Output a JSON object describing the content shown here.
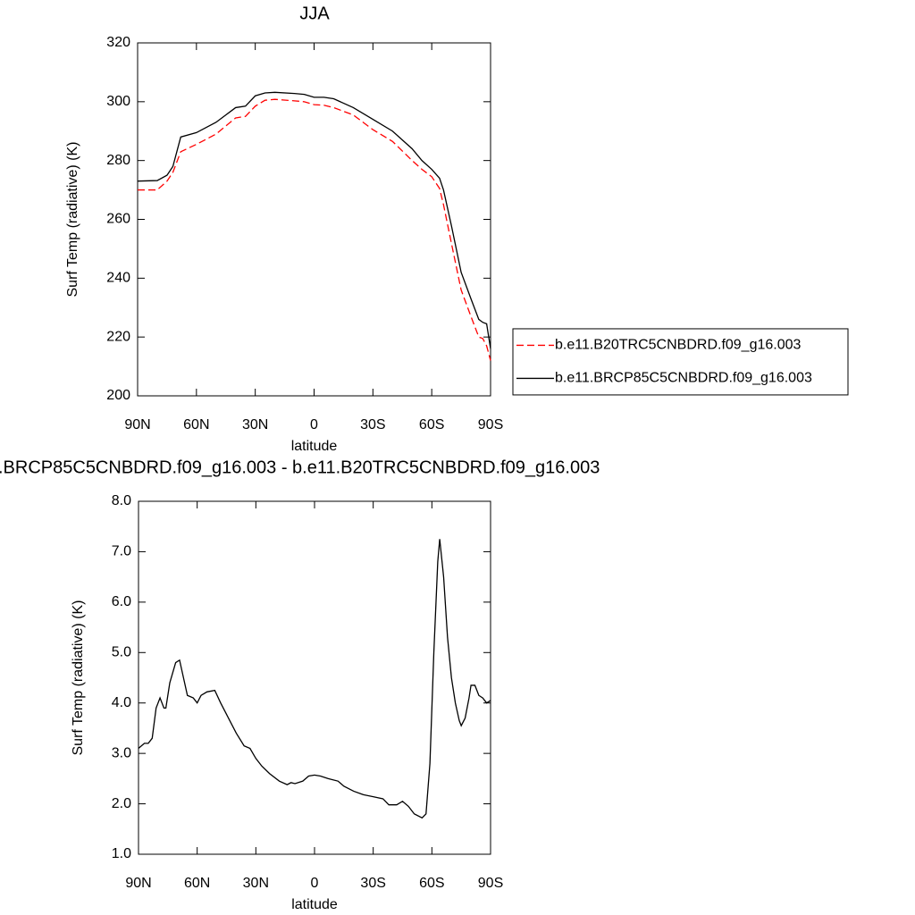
{
  "chart_data": [
    {
      "type": "line",
      "title": "JJA",
      "xlabel": "latitude",
      "ylabel": "Surf Temp (radiative) (K)",
      "x": [
        90,
        80,
        75,
        72,
        68,
        60,
        50,
        40,
        35,
        30,
        25,
        20,
        10,
        5,
        0,
        -5,
        -10,
        -20,
        -30,
        -40,
        -50,
        -55,
        -60,
        -64,
        -66,
        -70,
        -75,
        -80,
        -84,
        -86,
        -88,
        -90
      ],
      "series": [
        {
          "name": "b.e11.B20TRC5CNBDRD.f09_g16.003",
          "color": "#ff0000",
          "line_style": "dashed",
          "values": [
            270,
            270,
            273,
            276,
            283,
            285.5,
            289,
            294.5,
            295,
            298.5,
            300.5,
            300.8,
            300.3,
            300,
            299,
            298.8,
            298,
            295.5,
            290.5,
            286.5,
            280,
            277,
            274.5,
            270.5,
            265,
            252,
            236,
            227,
            220,
            219.5,
            217,
            212
          ]
        },
        {
          "name": "b.e11.BRCP85C5CNBDRD.f09_g16.003",
          "color": "#000000",
          "line_style": "solid",
          "values": [
            273,
            273.2,
            275,
            278,
            288,
            289.5,
            293,
            298,
            298.5,
            302,
            303,
            303.2,
            302.8,
            302.5,
            301.5,
            301.5,
            301,
            298,
            294,
            290,
            284,
            280,
            277,
            274,
            270,
            258,
            242,
            233,
            226,
            225,
            224.5,
            216
          ]
        }
      ],
      "xlim": [
        90,
        -90
      ],
      "xticks": [
        {
          "value": 90,
          "label": "90N"
        },
        {
          "value": 60,
          "label": "60N"
        },
        {
          "value": 30,
          "label": "30N"
        },
        0,
        {
          "value": -30,
          "label": "30S"
        },
        {
          "value": -60,
          "label": "60S"
        },
        {
          "value": -90,
          "label": "90S"
        }
      ],
      "ylim": [
        200,
        320
      ],
      "yticks": [
        200,
        220,
        240,
        260,
        280,
        300,
        320
      ],
      "legend": "right"
    },
    {
      "type": "line",
      "title": ".BRCP85C5CNBDRD.f09_g16.003 - b.e11.B20TRC5CNBDRD.f09_g16.003",
      "xlabel": "latitude",
      "ylabel": "Surf Temp (radiative) (K)",
      "x": [
        90,
        87,
        85,
        83,
        81,
        79,
        77,
        76,
        74,
        71,
        69,
        67,
        65,
        62,
        60,
        58,
        55,
        51,
        48,
        44,
        40,
        36,
        33,
        30,
        27,
        23,
        18,
        14,
        12,
        10,
        6,
        3,
        0,
        -3,
        -7,
        -12,
        -15,
        -20,
        -25,
        -30,
        -35,
        -38,
        -42,
        -45,
        -48,
        -51,
        -55,
        -57,
        -59,
        -61,
        -63,
        -64,
        -66,
        -68,
        -70,
        -72,
        -74,
        -75,
        -77,
        -79,
        -80,
        -82,
        -84,
        -86,
        -88,
        -90
      ],
      "values": [
        3.1,
        3.2,
        3.2,
        3.3,
        3.9,
        4.1,
        3.9,
        3.9,
        4.4,
        4.8,
        4.85,
        4.5,
        4.15,
        4.1,
        4.0,
        4.15,
        4.22,
        4.25,
        4.0,
        3.7,
        3.4,
        3.15,
        3.1,
        2.9,
        2.75,
        2.6,
        2.45,
        2.38,
        2.42,
        2.4,
        2.45,
        2.55,
        2.57,
        2.55,
        2.5,
        2.45,
        2.35,
        2.25,
        2.18,
        2.14,
        2.1,
        1.98,
        1.98,
        2.05,
        1.95,
        1.8,
        1.72,
        1.8,
        2.8,
        5.0,
        6.8,
        7.25,
        6.5,
        5.3,
        4.5,
        4.0,
        3.65,
        3.55,
        3.7,
        4.1,
        4.35,
        4.35,
        4.15,
        4.1,
        4.0,
        4.05
      ],
      "color": "#000000",
      "xlim": [
        90,
        -90
      ],
      "xticks": [
        {
          "value": 90,
          "label": "90N"
        },
        {
          "value": 60,
          "label": "60N"
        },
        {
          "value": 30,
          "label": "30N"
        },
        0,
        {
          "value": -30,
          "label": "30S"
        },
        {
          "value": -60,
          "label": "60S"
        },
        {
          "value": -90,
          "label": "90S"
        }
      ],
      "ylim": [
        1,
        8
      ],
      "yticks": [
        {
          "value": 1,
          "label": "1.0"
        },
        {
          "value": 2,
          "label": "2.0"
        },
        {
          "value": 3,
          "label": "3.0"
        },
        {
          "value": 4,
          "label": "4.0"
        },
        {
          "value": 5,
          "label": "5.0"
        },
        {
          "value": 6,
          "label": "6.0"
        },
        {
          "value": 7,
          "label": "7.0"
        },
        {
          "value": 8,
          "label": "8.0"
        }
      ]
    }
  ]
}
